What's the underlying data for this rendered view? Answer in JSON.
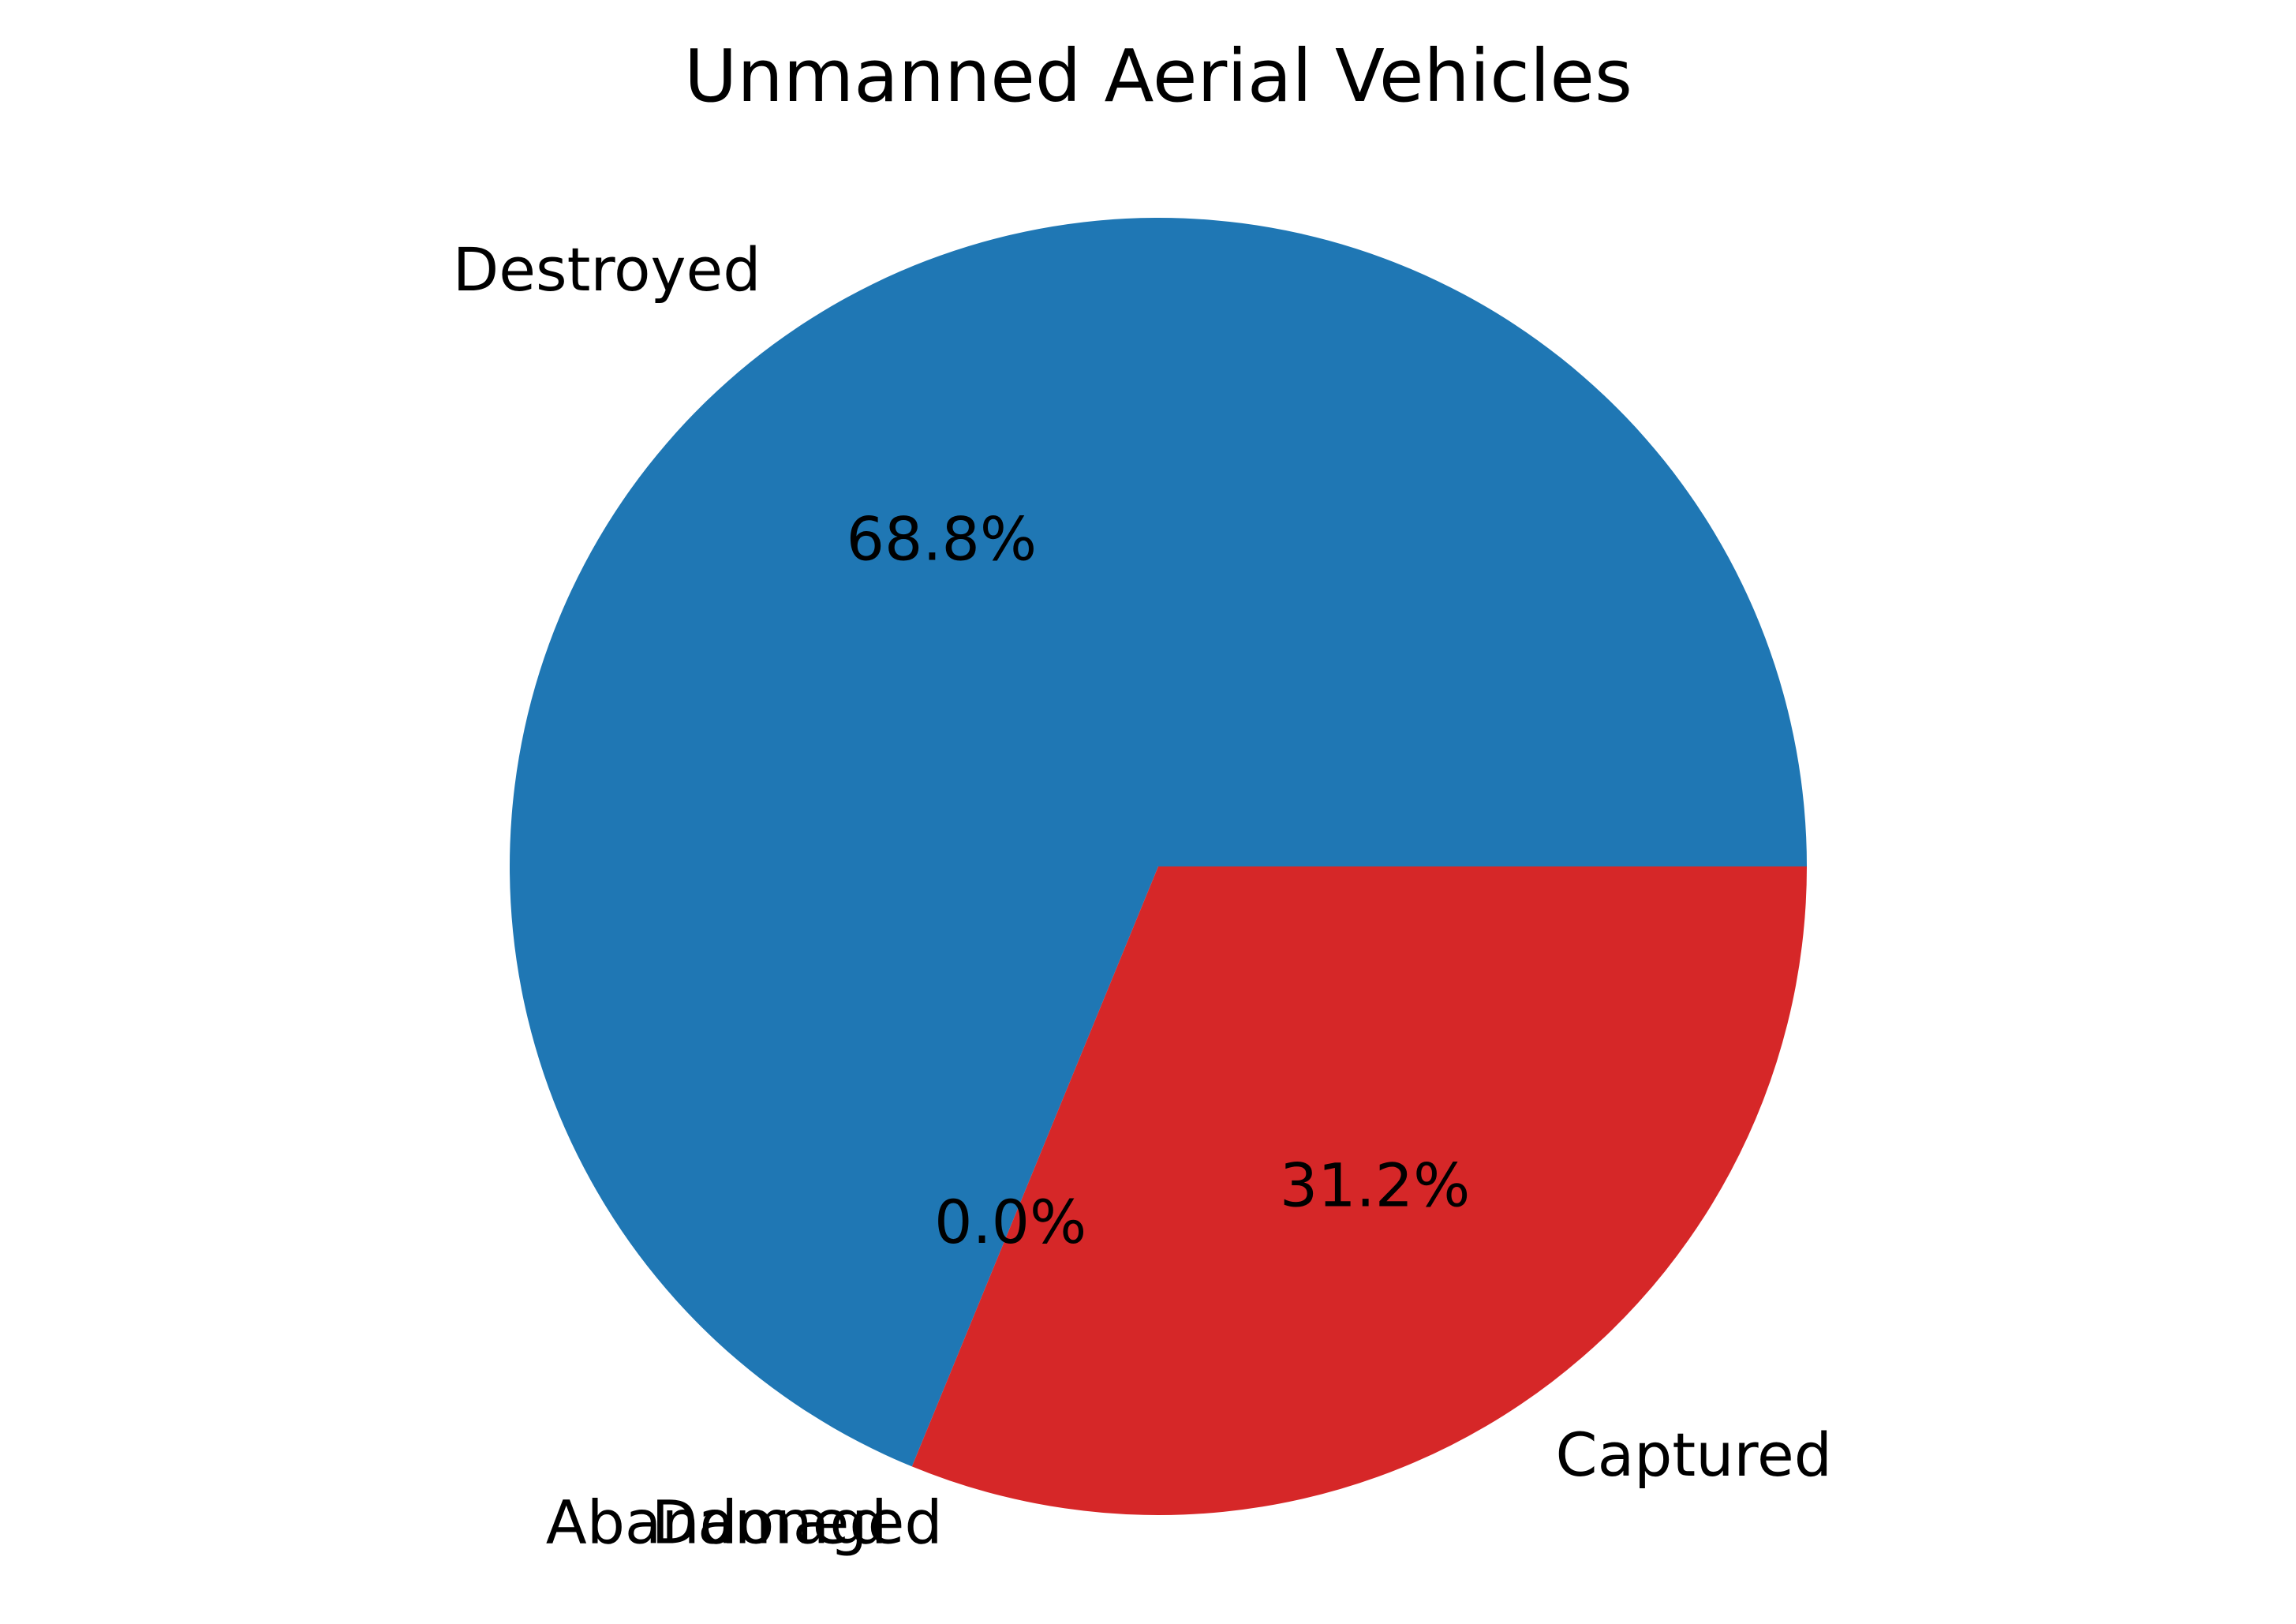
{
  "chart_data": {
    "type": "pie",
    "title": "Unmanned Aerial Vehicles",
    "slices": [
      {
        "label": "Destroyed",
        "pct_label": "68.8%",
        "value": 68.8,
        "color": "#1f77b4"
      },
      {
        "label": "Damaged",
        "pct_label": "",
        "value": 0.0,
        "color": "#ff7f0e"
      },
      {
        "label": "Abandoned",
        "pct_label": "0.0%",
        "value": 0.0,
        "color": "#2ca02c"
      },
      {
        "label": "Captured",
        "pct_label": "31.2%",
        "value": 31.2,
        "color": "#d62728"
      }
    ],
    "start_angle_deg": 0,
    "direction": "counterclockwise"
  }
}
